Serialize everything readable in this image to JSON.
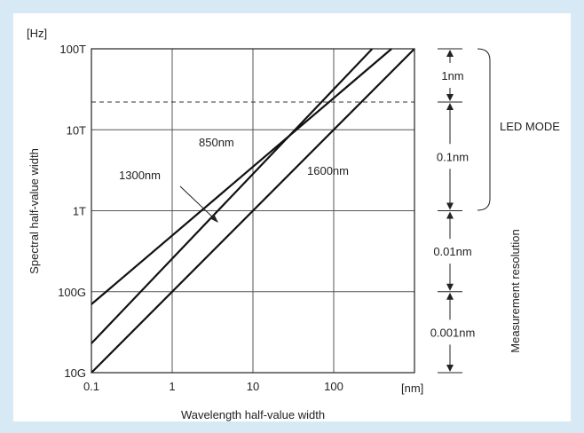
{
  "chart_data": {
    "type": "line",
    "title": "",
    "xlabel": "Wavelength half-value width",
    "ylabel": "Spectral half-value width",
    "x_unit": "[nm]",
    "y_unit": "[Hz]",
    "x_scale": "log",
    "y_scale": "log",
    "xlim": [
      0.1,
      1000
    ],
    "ylim": [
      10000000000,
      100000000000000
    ],
    "grid": true,
    "x_ticks": [
      {
        "value": 0.1,
        "label": "0.1"
      },
      {
        "value": 1,
        "label": "1"
      },
      {
        "value": 10,
        "label": "10"
      },
      {
        "value": 100,
        "label": "100"
      }
    ],
    "y_ticks": [
      {
        "value": 10000000000,
        "label": "10G"
      },
      {
        "value": 100000000000,
        "label": "100G"
      },
      {
        "value": 1000000000000,
        "label": "1T"
      },
      {
        "value": 10000000000000,
        "label": "10T"
      },
      {
        "value": 100000000000000,
        "label": "100T"
      }
    ],
    "series": [
      {
        "name": "850nm",
        "points": [
          [
            0.1,
            70000000000
          ],
          [
            520,
            100000000000000
          ]
        ]
      },
      {
        "name": "1300nm",
        "points": [
          [
            0.1,
            23000000000
          ],
          [
            300,
            100000000000000
          ]
        ]
      },
      {
        "name": "1600nm",
        "points": [
          [
            0.1,
            10000000000
          ],
          [
            1000,
            100000000000000
          ]
        ]
      }
    ],
    "reference_line": {
      "style": "dashed",
      "value": 22000000000000
    },
    "resolution_ranges": [
      {
        "label": "1nm",
        "from": 100000000000000,
        "to": 22000000000000
      },
      {
        "label": "0.1nm",
        "from": 22000000000000,
        "to": 1000000000000
      },
      {
        "label": "0.01nm",
        "from": 1000000000000,
        "to": 100000000000
      },
      {
        "label": "0.001nm",
        "from": 100000000000,
        "to": 10000000000
      }
    ],
    "led_mode_label": "LED MODE",
    "side_label": "Measurement resolution"
  }
}
